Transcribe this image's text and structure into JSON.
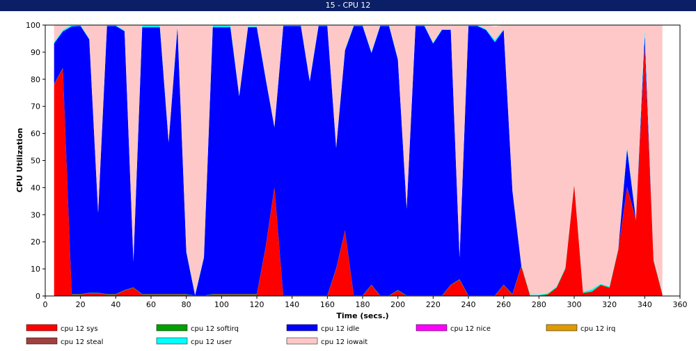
{
  "window": {
    "title": "15 - CPU 12"
  },
  "chart_data": {
    "type": "area",
    "stacked": true,
    "title": "",
    "xlabel": "Time (secs.)",
    "ylabel": "CPU Utilization",
    "xlim": [
      0,
      360
    ],
    "ylim": [
      0,
      100
    ],
    "xticks": [
      0,
      20,
      40,
      60,
      80,
      100,
      120,
      140,
      160,
      180,
      200,
      220,
      240,
      260,
      280,
      300,
      320,
      340,
      360
    ],
    "yticks": [
      0,
      10,
      20,
      30,
      40,
      50,
      60,
      70,
      80,
      90,
      100
    ],
    "grid": false,
    "legend_position": "bottom",
    "x": [
      5,
      10,
      15,
      20,
      25,
      30,
      35,
      40,
      45,
      50,
      55,
      60,
      65,
      70,
      75,
      80,
      85,
      90,
      95,
      100,
      105,
      110,
      115,
      120,
      125,
      130,
      135,
      140,
      145,
      150,
      155,
      160,
      165,
      170,
      175,
      180,
      185,
      190,
      195,
      200,
      205,
      210,
      215,
      220,
      225,
      230,
      235,
      240,
      245,
      250,
      255,
      260,
      265,
      270,
      275,
      280,
      285,
      290,
      295,
      300,
      305,
      310,
      315,
      320,
      325,
      330,
      335,
      340,
      345,
      350
    ],
    "series": [
      {
        "name": "cpu 12 sys",
        "color": "#ff0000",
        "values": [
          78,
          84,
          0.5,
          0.5,
          1,
          1,
          0.5,
          0.5,
          2,
          3,
          0.5,
          0.5,
          0.5,
          0.5,
          0.5,
          0.5,
          0,
          0,
          0.5,
          0.5,
          0.5,
          0.5,
          0.5,
          0.5,
          18,
          40,
          0,
          0,
          0,
          0,
          0,
          0,
          10,
          24,
          0,
          0,
          4,
          0,
          0,
          2,
          0,
          0,
          0,
          0,
          0,
          4,
          6,
          0,
          0,
          0,
          0,
          4,
          0.5,
          11,
          0,
          0,
          0.5,
          3,
          10,
          41,
          1,
          1.5,
          4,
          3,
          17,
          40,
          28,
          92,
          13,
          0.5
        ]
      },
      {
        "name": "cpu 12 softirq",
        "color": "#00a000",
        "values": [
          0.2,
          0.2,
          0.2,
          0.2,
          0.2,
          0.2,
          0.2,
          0.2,
          0.2,
          0.2,
          0.2,
          0.2,
          0.2,
          0.2,
          0.2,
          0.2,
          0.2,
          0.2,
          0.2,
          0.2,
          0.2,
          0.2,
          0.2,
          0.2,
          0.2,
          0.2,
          0.2,
          0.2,
          0.2,
          0.2,
          0.2,
          0.2,
          0.2,
          0.2,
          0.2,
          0.2,
          0.2,
          0.2,
          0.2,
          0.2,
          0.2,
          0.2,
          0.2,
          0.2,
          0.2,
          0.2,
          0.2,
          0.2,
          0.2,
          0.2,
          0.2,
          0.2,
          0.2,
          0.2,
          0.2,
          0.2,
          0.2,
          0.2,
          0.2,
          0.2,
          0.2,
          0.2,
          0.2,
          0.2,
          0.2,
          0.2,
          0.2,
          0.2,
          0.2,
          0.2
        ]
      },
      {
        "name": "cpu 12 idle",
        "color": "#0000ff",
        "values": [
          15,
          13.4,
          98.8,
          99,
          93.5,
          29.5,
          99,
          99,
          95.5,
          9.5,
          98.5,
          98.5,
          98.5,
          56,
          98.5,
          15.5,
          0,
          14,
          98.5,
          98.5,
          98.5,
          73,
          98.5,
          98.5,
          62,
          22,
          99.5,
          99.5,
          99.5,
          79,
          99.5,
          99.5,
          44.5,
          66.5,
          99.5,
          99.5,
          85.5,
          99.5,
          99.5,
          85,
          32,
          99.5,
          99.5,
          93,
          98,
          94,
          8,
          99.5,
          99.5,
          98,
          93.5,
          94,
          38,
          0,
          0,
          0,
          0,
          0,
          0,
          0,
          0,
          0,
          0,
          0,
          0,
          14,
          0,
          4,
          0,
          0
        ]
      },
      {
        "name": "cpu 12 nice",
        "color": "#ff00ff",
        "values": [
          0,
          0,
          0,
          0,
          0,
          0,
          0,
          0,
          0,
          0,
          0,
          0,
          0,
          0,
          0,
          0,
          0,
          0,
          0,
          0,
          0,
          0,
          0,
          0,
          0,
          0,
          0,
          0,
          0,
          0,
          0,
          0,
          0,
          0,
          0,
          0,
          0,
          0,
          0,
          0,
          0,
          0,
          0,
          0,
          0,
          0,
          0,
          0,
          0,
          0,
          0,
          0,
          0,
          0,
          0,
          0,
          0,
          0,
          0,
          0,
          0,
          0,
          0,
          0,
          0,
          0,
          0,
          0,
          0,
          0
        ]
      },
      {
        "name": "cpu 12 irq",
        "color": "#e09a00",
        "values": [
          0,
          0,
          0,
          0,
          0,
          0,
          0,
          0,
          0,
          0,
          0,
          0,
          0,
          0,
          0,
          0,
          0,
          0,
          0,
          0,
          0,
          0,
          0,
          0,
          0,
          0,
          0,
          0,
          0,
          0,
          0,
          0,
          0,
          0,
          0,
          0,
          0,
          0,
          0,
          0,
          0,
          0,
          0,
          0,
          0,
          0,
          0,
          0,
          0,
          0,
          0,
          0,
          0,
          0,
          0,
          0,
          0,
          0,
          0,
          0,
          0,
          0,
          0,
          0,
          0,
          0,
          0,
          0,
          0,
          0
        ]
      },
      {
        "name": "cpu 12 steal",
        "color": "#a04040",
        "values": [
          0,
          0,
          0,
          0,
          0,
          0,
          0,
          0,
          0,
          0,
          0,
          0,
          0,
          0,
          0,
          0,
          0,
          0,
          0,
          0,
          0,
          0,
          0,
          0,
          0,
          0,
          0,
          0,
          0,
          0,
          0,
          0,
          0,
          0,
          0,
          0,
          0,
          0,
          0,
          0,
          0,
          0,
          0,
          0,
          0,
          0,
          0,
          0,
          0,
          0,
          0,
          0,
          0,
          0,
          0,
          0,
          0,
          0,
          0,
          0,
          0,
          0,
          0,
          0,
          0,
          0,
          0,
          0,
          0,
          0
        ]
      },
      {
        "name": "cpu 12 user",
        "color": "#00ffff",
        "values": [
          0.5,
          0.6,
          0.5,
          0.3,
          0.3,
          0.3,
          0.3,
          0.3,
          0.3,
          0.3,
          0.8,
          0.8,
          0.8,
          0.3,
          0.8,
          0.3,
          0.3,
          0.3,
          0.8,
          0.8,
          0.8,
          0.3,
          0.3,
          0.3,
          0.3,
          0.3,
          0.3,
          0.3,
          0.3,
          0.3,
          0.3,
          0.3,
          0.3,
          0.3,
          0.3,
          0.3,
          0.3,
          0.3,
          0.3,
          0.3,
          0.3,
          0.3,
          0.3,
          0.3,
          0.3,
          0.3,
          0.3,
          0.3,
          0.3,
          0.3,
          0.8,
          0.3,
          0.3,
          0.3,
          0.3,
          0.3,
          0.3,
          0.3,
          0.3,
          0.3,
          0.3,
          0.8,
          0.3,
          0.3,
          0.3,
          1,
          0.3,
          2,
          0.3,
          0.3
        ]
      },
      {
        "name": "cpu 12 iowait",
        "color": "#ffc8c8",
        "values": [
          6.3,
          1.8,
          0,
          0,
          5,
          69,
          0,
          0,
          2,
          87,
          0,
          0,
          0,
          43,
          0,
          84,
          99.5,
          85.5,
          0,
          0,
          0,
          26,
          0.5,
          0.5,
          19.5,
          37.5,
          0,
          0,
          0,
          20.5,
          0,
          0,
          45,
          9,
          0,
          0,
          10,
          0,
          0,
          12.5,
          67.5,
          0,
          0,
          6.5,
          1.5,
          1.5,
          85.5,
          0,
          0,
          1.5,
          5,
          1.5,
          61,
          88.5,
          99.5,
          99.5,
          99.3,
          96.5,
          89.5,
          58.5,
          98.5,
          97.5,
          95.5,
          96.5,
          82.5,
          44.8,
          71.5,
          1.8,
          86.5,
          99
        ]
      }
    ]
  }
}
